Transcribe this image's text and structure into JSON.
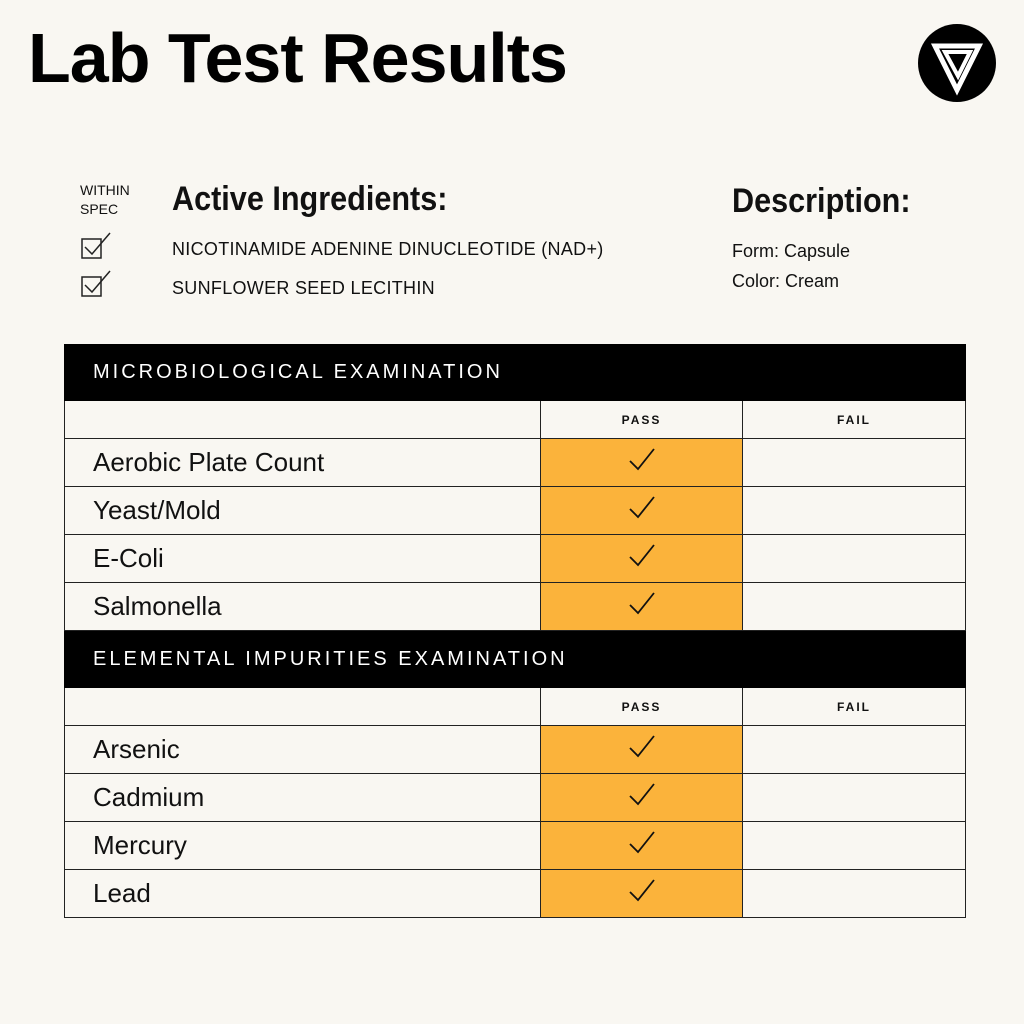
{
  "title": "Lab Test Results",
  "brand": {
    "logo": "triangle-v-logo"
  },
  "within_spec_label": "WITHIN SPEC",
  "active_ingredients": {
    "heading": "Active Ingredients:",
    "items": [
      "NICOTINAMIDE ADENINE DINUCLEOTIDE (NAD+)",
      "SUNFLOWER SEED LECITHIN"
    ]
  },
  "description": {
    "heading": "Description:",
    "form": "Form: Capsule",
    "color": "Color: Cream"
  },
  "columns": {
    "pass": "PASS",
    "fail": "FAIL"
  },
  "sections": [
    {
      "title": "MICROBIOLOGICAL EXAMINATION",
      "rows": [
        {
          "name": "Aerobic Plate Count",
          "result": "pass"
        },
        {
          "name": "Yeast/Mold",
          "result": "pass"
        },
        {
          "name": "E-Coli",
          "result": "pass"
        },
        {
          "name": "Salmonella",
          "result": "pass"
        }
      ]
    },
    {
      "title": "ELEMENTAL IMPURITIES EXAMINATION",
      "rows": [
        {
          "name": "Arsenic",
          "result": "pass"
        },
        {
          "name": "Cadmium",
          "result": "pass"
        },
        {
          "name": "Mercury",
          "result": "pass"
        },
        {
          "name": "Lead",
          "result": "pass"
        }
      ]
    }
  ],
  "colors": {
    "pass_fill": "#fbb33b",
    "header": "#000000",
    "background": "#f9f7f2"
  }
}
